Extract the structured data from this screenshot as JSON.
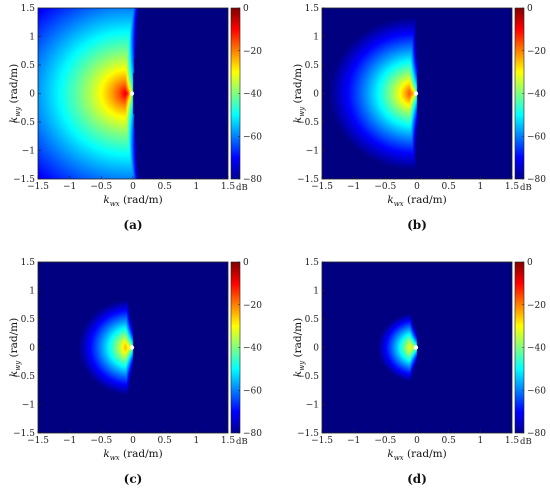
{
  "chart_data": [
    {
      "type": "heatmap",
      "caption": "(a)",
      "xlabel": {
        "main": "k",
        "sub": "wx",
        "unit": " (rad/m)"
      },
      "ylabel": {
        "main": "k",
        "sub": "wy",
        "unit": " (rad/m)"
      },
      "xlim": [
        -1.5,
        1.5
      ],
      "ylim": [
        -1.5,
        1.5
      ],
      "xticks": [
        "-1.5",
        "-1",
        "-0.5",
        "0",
        "0.5",
        "1",
        "1.5"
      ],
      "yticks": [
        "1.5",
        "1",
        "0.5",
        "0",
        "-0.5",
        "-1",
        "-1.5"
      ],
      "colorbar": {
        "ticks": [
          "0",
          "-20",
          "-40",
          "-60",
          "-80"
        ],
        "unit": "dB",
        "range": [
          -80,
          0
        ]
      },
      "field": {
        "source_kx": -0.08,
        "decay_db_per_unit": 48,
        "edge_kx": -0.05,
        "cutoff_kx": 0.0
      }
    },
    {
      "type": "heatmap",
      "caption": "(b)",
      "xlabel": {
        "main": "k",
        "sub": "wx",
        "unit": " (rad/m)"
      },
      "ylabel": {
        "main": "k",
        "sub": "wy",
        "unit": " (rad/m)"
      },
      "xlim": [
        -1.5,
        1.5
      ],
      "ylim": [
        -1.5,
        1.5
      ],
      "xticks": [
        "-1.5",
        "-1",
        "-0.5",
        "0",
        "0.5",
        "1",
        "1.5"
      ],
      "yticks": [
        "1.5",
        "1",
        "0.5",
        "0",
        "-0.5",
        "-1",
        "-1.5"
      ],
      "colorbar": {
        "ticks": [
          "0",
          "-20",
          "-40",
          "-60",
          "-80"
        ],
        "unit": "dB",
        "range": [
          -80,
          0
        ]
      },
      "field": {
        "source_kx": -0.04,
        "decay_db_per_unit": 68,
        "edge_kx": -0.03,
        "cutoff_kx": 0.0
      }
    },
    {
      "type": "heatmap",
      "caption": "(c)",
      "xlabel": {
        "main": "k",
        "sub": "wx",
        "unit": " (rad/m)"
      },
      "ylabel": {
        "main": "k",
        "sub": "wy",
        "unit": " (rad/m)"
      },
      "xlim": [
        -1.5,
        1.5
      ],
      "ylim": [
        -1.5,
        1.5
      ],
      "xticks": [
        "-1.5",
        "-1",
        "-0.5",
        "0",
        "0.5",
        "1",
        "1.5"
      ],
      "yticks": [
        "1.5",
        "1",
        "0.5",
        "0",
        "-0.5",
        "-1",
        "-1.5"
      ],
      "colorbar": {
        "ticks": [
          "0",
          "-20",
          "-40",
          "-60",
          "-80"
        ],
        "unit": "dB",
        "range": [
          -80,
          0
        ]
      },
      "field": {
        "source_kx": -0.02,
        "decay_db_per_unit": 88,
        "edge_kx": -0.02,
        "cutoff_kx": 0.0
      }
    },
    {
      "type": "heatmap",
      "caption": "(d)",
      "xlabel": {
        "main": "k",
        "sub": "wx",
        "unit": " (rad/m)"
      },
      "ylabel": {
        "main": "k",
        "sub": "wy",
        "unit": " (rad/m)"
      },
      "xlim": [
        -1.5,
        1.5
      ],
      "ylim": [
        -1.5,
        1.5
      ],
      "xticks": [
        "-1.5",
        "-1",
        "-0.5",
        "0",
        "0.5",
        "1",
        "1.5"
      ],
      "yticks": [
        "1.5",
        "1",
        "0.5",
        "0",
        "-0.5",
        "-1",
        "-1.5"
      ],
      "colorbar": {
        "ticks": [
          "0",
          "-20",
          "-40",
          "-60",
          "-80"
        ],
        "unit": "dB",
        "range": [
          -80,
          0
        ]
      },
      "field": {
        "source_kx": -0.01,
        "decay_db_per_unit": 105,
        "edge_kx": -0.01,
        "cutoff_kx": 0.0
      }
    }
  ]
}
